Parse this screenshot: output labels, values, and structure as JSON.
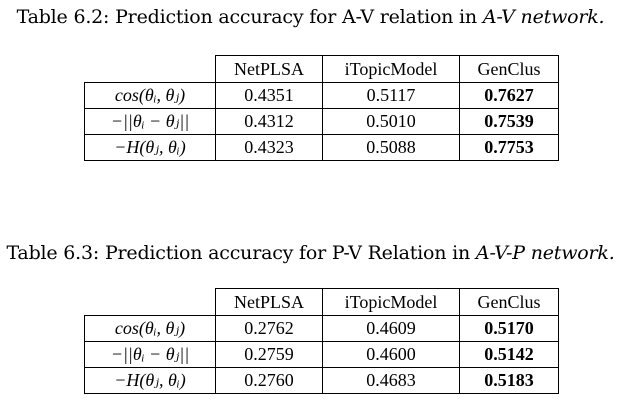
{
  "t1": {
    "caption": "Table 6.2: Prediction accuracy for A-V relation in",
    "caption_net": "A-V network.",
    "cols": [
      "NetPLSA",
      "iTopicModel",
      "GenClus"
    ],
    "rows": [
      [
        "cos(θᵢ, θⱼ)",
        "0.4351",
        "0.5117",
        "0.7627"
      ],
      [
        "−||θᵢ − θⱼ||",
        "0.4312",
        "0.5010",
        "0.7539"
      ],
      [
        "−H(θⱼ, θᵢ)",
        "0.4323",
        "0.5088",
        "0.7753"
      ]
    ]
  },
  "t2": {
    "caption": "Table 6.3: Prediction accuracy for P-V Relation in",
    "caption_net": "A-V-P network.",
    "cols": [
      "NetPLSA",
      "iTopicModel",
      "GenClus"
    ],
    "rows": [
      [
        "cos(θᵢ, θⱼ)",
        "0.2762",
        "0.4609",
        "0.5170"
      ],
      [
        "−||θᵢ − θⱼ||",
        "0.2759",
        "0.4600",
        "0.5142"
      ],
      [
        "−H(θⱼ, θᵢ)",
        "0.2760",
        "0.4683",
        "0.5183"
      ]
    ]
  }
}
